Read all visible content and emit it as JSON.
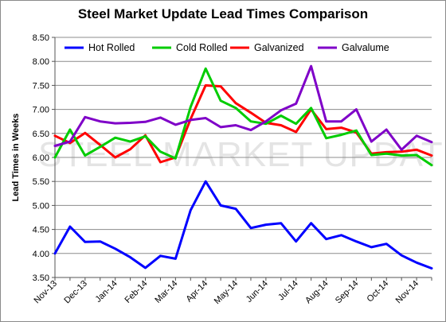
{
  "chart_data": {
    "type": "line",
    "title": "Steel Market Update Lead Times Comparison",
    "ylabel": "Lead Times in Weeks",
    "watermark": "STEEL MARKET UPDATE",
    "ylim": [
      3.5,
      8.5
    ],
    "yticks": [
      "3.50",
      "4.00",
      "4.50",
      "5.00",
      "5.50",
      "6.00",
      "6.50",
      "7.00",
      "7.50",
      "8.00",
      "8.50"
    ],
    "xtick_labels": [
      "Nov-13",
      "Dec-13",
      "Jan-14",
      "Feb-14",
      "Mar-14",
      "Apr-14",
      "May-14",
      "Jun-14",
      "Jul-14",
      "Aug-14",
      "Sep-14",
      "Oct-14",
      "Nov-14"
    ],
    "grid": true,
    "legend_position": "top",
    "points_per_month": 2,
    "series": [
      {
        "name": "Hot Rolled",
        "color": "#0000ff",
        "values": [
          4.0,
          4.56,
          4.24,
          4.25,
          4.1,
          3.92,
          3.7,
          3.95,
          3.89,
          4.9,
          5.5,
          5.0,
          4.93,
          4.53,
          4.6,
          4.63,
          4.25,
          4.63,
          4.3,
          4.38,
          4.25,
          4.13,
          4.2,
          3.96,
          3.81,
          3.69
        ]
      },
      {
        "name": "Cold Rolled",
        "color": "#00cc00",
        "values": [
          6.0,
          6.58,
          6.04,
          6.22,
          6.41,
          6.33,
          6.44,
          6.12,
          5.98,
          7.05,
          7.85,
          7.18,
          7.03,
          6.75,
          6.7,
          6.87,
          6.7,
          7.03,
          6.4,
          6.47,
          6.56,
          6.05,
          6.08,
          6.04,
          6.05,
          5.84
        ]
      },
      {
        "name": "Galvanized",
        "color": "#ff0000",
        "values": [
          6.45,
          6.3,
          6.51,
          6.26,
          6.0,
          6.17,
          6.46,
          5.9,
          6.0,
          6.8,
          7.5,
          7.48,
          7.13,
          6.93,
          6.72,
          6.67,
          6.53,
          7.0,
          6.59,
          6.62,
          6.52,
          6.08,
          6.11,
          6.12,
          6.16,
          6.04
        ]
      },
      {
        "name": "Galvalume",
        "color": "#7f00c8",
        "values": [
          6.24,
          6.33,
          6.84,
          6.75,
          6.71,
          6.72,
          6.74,
          6.83,
          6.68,
          6.78,
          6.82,
          6.63,
          6.67,
          6.57,
          6.75,
          6.98,
          7.12,
          7.9,
          6.75,
          6.75,
          7.0,
          6.33,
          6.58,
          6.16,
          6.45,
          6.32
        ]
      }
    ]
  }
}
